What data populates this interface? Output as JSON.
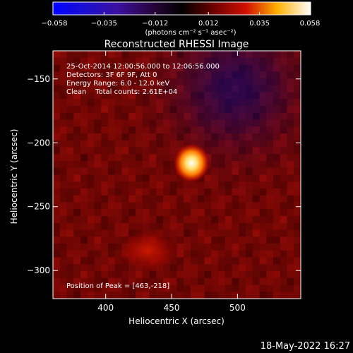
{
  "chart_data": {
    "type": "heatmap",
    "title": "Reconstructed RHESSI Image",
    "xlabel": "Heliocentric X (arcsec)",
    "ylabel": "Heliocentric Y (arcsec)",
    "xlim": [
      360,
      548
    ],
    "ylim": [
      -322,
      -128
    ],
    "x_ticks": [
      400,
      450,
      500
    ],
    "x_tick_labels": [
      "400",
      "450",
      "500"
    ],
    "y_ticks": [
      -150,
      -200,
      -250,
      -300
    ],
    "y_tick_labels": [
      "−150",
      "−200",
      "−250",
      "−300"
    ],
    "colorbar": {
      "min": -0.058,
      "max": 0.058,
      "ticks": [
        -0.058,
        -0.035,
        -0.012,
        0.012,
        0.035,
        0.058
      ],
      "tick_labels": [
        "−0.058",
        "−0.035",
        "−0.012",
        "0.012",
        "0.035",
        "0.058"
      ],
      "units": "(photons cm⁻² s⁻¹ asec⁻²)"
    },
    "annotations": [
      "25-Oct-2014 12:00:56.000 to 12:06:56.000",
      "Detectors: 3F 6F 9F, Att 0",
      "Energy Range: 6.0 - 12.0 keV",
      "Clean    Total counts: 2.61E+04"
    ],
    "peak_label": "Position of Peak = [463,-218]",
    "peak": {
      "x": 463,
      "y": -218,
      "value": 0.058
    },
    "secondary_source": {
      "x": 432,
      "y": -290,
      "value": 0.016
    },
    "grid": false
  },
  "footer": {
    "timestamp": "18-May-2022 16:27"
  }
}
